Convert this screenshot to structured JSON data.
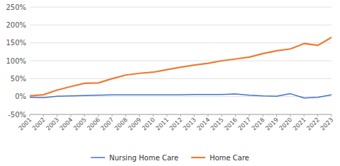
{
  "chart_data": {
    "type": "line",
    "x": [
      2001,
      2002,
      2003,
      2004,
      2005,
      2006,
      2007,
      2008,
      2009,
      2010,
      2011,
      2012,
      2013,
      2014,
      2015,
      2016,
      2017,
      2018,
      2019,
      2020,
      2021,
      2022,
      2023
    ],
    "series": [
      {
        "name": "Nursing Home Care",
        "color": "#4472c4",
        "values": [
          -0.02,
          -0.03,
          0.01,
          0.02,
          0.03,
          0.04,
          0.05,
          0.05,
          0.05,
          0.05,
          0.05,
          0.05,
          0.06,
          0.06,
          0.06,
          0.07,
          0.04,
          0.02,
          0.01,
          0.08,
          -0.04,
          -0.02,
          0.05
        ]
      },
      {
        "name": "Home Care",
        "color": "#ed7d31",
        "values": [
          0.02,
          0.05,
          0.18,
          0.28,
          0.37,
          0.38,
          0.5,
          0.6,
          0.65,
          0.68,
          0.75,
          0.82,
          0.88,
          0.93,
          1.0,
          1.05,
          1.1,
          1.2,
          1.28,
          1.33,
          1.48,
          1.43,
          1.65
        ]
      }
    ],
    "xlim": [
      2001,
      2023
    ],
    "xticks": [
      2001,
      2002,
      2003,
      2004,
      2005,
      2006,
      2007,
      2008,
      2009,
      2010,
      2011,
      2012,
      2013,
      2014,
      2015,
      2016,
      2017,
      2018,
      2019,
      2020,
      2021,
      2022,
      2023
    ],
    "ylim": [
      -0.5,
      2.5
    ],
    "yticks": [
      {
        "value": -0.5,
        "label": "-50%"
      },
      {
        "value": 0.0,
        "label": "0%"
      },
      {
        "value": 0.5,
        "label": "50%"
      },
      {
        "value": 1.0,
        "label": "100%"
      },
      {
        "value": 1.5,
        "label": "150%"
      },
      {
        "value": 2.0,
        "label": "200%"
      },
      {
        "value": 2.5,
        "label": "250%"
      }
    ],
    "grid": true,
    "legend": "bottom"
  }
}
